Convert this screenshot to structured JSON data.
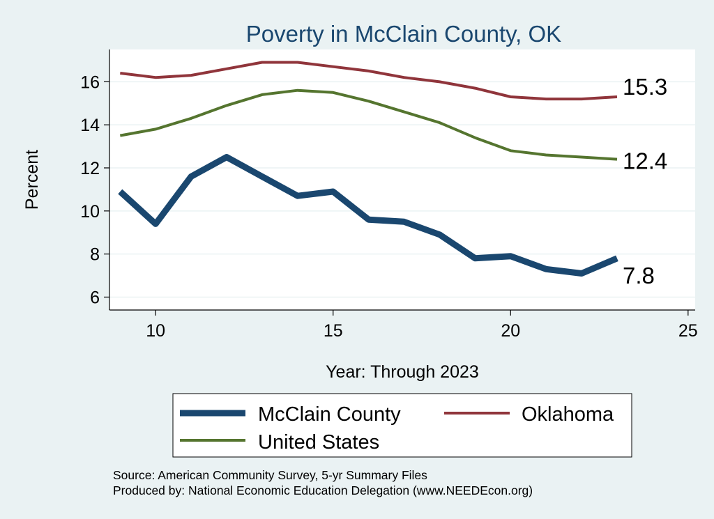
{
  "chart_data": {
    "type": "line",
    "title": "Poverty in McClain County, OK",
    "xlabel": "Year: Through 2023",
    "ylabel": "Percent",
    "xlim": [
      8.7,
      25.2
    ],
    "ylim": [
      5.4,
      17.5
    ],
    "x_ticks": [
      10,
      15,
      20,
      25
    ],
    "y_ticks": [
      6,
      8,
      10,
      12,
      14,
      16
    ],
    "grid": true,
    "x": [
      9,
      10,
      11,
      12,
      13,
      14,
      15,
      16,
      17,
      18,
      19,
      20,
      21,
      22,
      23
    ],
    "series": [
      {
        "name": "McClain County",
        "color": "#1a476f",
        "width": "thick",
        "values": [
          10.9,
          9.4,
          11.6,
          12.5,
          11.6,
          10.7,
          10.9,
          9.6,
          9.5,
          8.9,
          7.8,
          7.9,
          7.3,
          7.1,
          7.8
        ],
        "end_label": "7.8"
      },
      {
        "name": "Oklahoma",
        "color": "#90353b",
        "width": "medium",
        "values": [
          16.4,
          16.2,
          16.3,
          16.6,
          16.9,
          16.9,
          16.7,
          16.5,
          16.2,
          16.0,
          15.7,
          15.3,
          15.2,
          15.2,
          15.3
        ],
        "end_label": "15.3"
      },
      {
        "name": "United States",
        "color": "#55752f",
        "width": "medium",
        "values": [
          13.5,
          13.8,
          14.3,
          14.9,
          15.4,
          15.6,
          15.5,
          15.1,
          14.6,
          14.1,
          13.4,
          12.8,
          12.6,
          12.5,
          12.4
        ],
        "end_label": "12.4"
      }
    ],
    "legend": {
      "position": "bottom",
      "entries": [
        "McClain County",
        "Oklahoma",
        "United States"
      ]
    }
  },
  "notes": {
    "source": "Source: American Community Survey, 5-yr Summary Files",
    "produced": "Produced by: National Economic Education Delegation (www.NEEDEcon.org)"
  }
}
